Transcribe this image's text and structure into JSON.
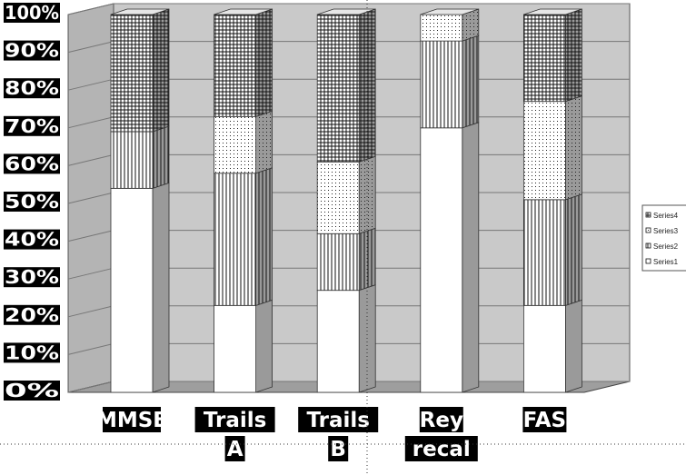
{
  "chart_data": {
    "type": "bar",
    "stacked": true,
    "percent_stacked": true,
    "three_d": true,
    "categories": [
      [
        "MMSE"
      ],
      [
        "Trails",
        "A"
      ],
      [
        "Trails",
        "B"
      ],
      [
        "Rey",
        "recal"
      ],
      [
        "FAS"
      ]
    ],
    "series": [
      {
        "name": "Series1",
        "pattern": "solid-white",
        "values": [
          54,
          23,
          27,
          70,
          23
        ]
      },
      {
        "name": "Series2",
        "pattern": "vertical-lines",
        "values": [
          15,
          35,
          15,
          23,
          28
        ]
      },
      {
        "name": "Series3",
        "pattern": "dots",
        "values": [
          0,
          15,
          19,
          7,
          26
        ]
      },
      {
        "name": "Series4",
        "pattern": "grid",
        "values": [
          31,
          27,
          39,
          0,
          23
        ]
      }
    ],
    "y_ticks": [
      "0%",
      "10%",
      "20%",
      "30%",
      "40%",
      "50%",
      "60%",
      "70%",
      "80%",
      "90%",
      "100%"
    ],
    "ylim": [
      0,
      100
    ],
    "grid": true,
    "legend_position": "right",
    "colors": {
      "back_wall": "#c9c9c9",
      "side_wall": "#b4b4b4",
      "floor": "#9e9e9e",
      "bar_front": "#ffffff",
      "bar_side": "#9a9a9a",
      "label_box": "#000000"
    }
  }
}
